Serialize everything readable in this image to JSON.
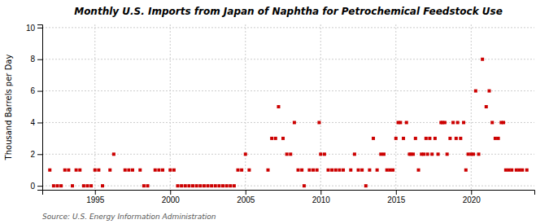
{
  "chart_data": {
    "type": "scatter",
    "title": "Monthly U.S. Imports from Japan of Naphtha for Petrochemical Feedstock Use",
    "ylabel": "Thousand Barrels per Day",
    "annotations": [
      "Source: U.S. Energy Information Administration"
    ],
    "color": "#cc0000",
    "marker": "square",
    "grid": true,
    "xlim": [
      1991.5,
      2024.2
    ],
    "ylim": [
      -0.25,
      10.2
    ],
    "xticks": [
      1995,
      2000,
      2005,
      2010,
      2015,
      2020
    ],
    "yticks": [
      0,
      2,
      4,
      6,
      8,
      10
    ],
    "x": [
      1992.0,
      1992.25,
      1992.5,
      1992.75,
      1993.0,
      1993.25,
      1993.5,
      1993.75,
      1994.0,
      1994.25,
      1994.5,
      1994.75,
      1995.0,
      1995.25,
      1995.5,
      1996.0,
      1996.25,
      1997.0,
      1997.25,
      1997.5,
      1998.0,
      1998.25,
      1998.5,
      1999.0,
      1999.25,
      1999.5,
      2000.0,
      2000.25,
      2000.5,
      2000.75,
      2001.0,
      2001.25,
      2001.5,
      2001.75,
      2002.0,
      2002.25,
      2002.5,
      2002.75,
      2003.0,
      2003.25,
      2003.5,
      2003.75,
      2004.0,
      2004.25,
      2004.5,
      2004.75,
      2005.0,
      2005.25,
      2006.5,
      2006.75,
      2007.0,
      2007.2,
      2007.5,
      2007.75,
      2008.0,
      2008.25,
      2008.5,
      2008.75,
      2008.9,
      2009.25,
      2009.5,
      2009.75,
      2009.9,
      2010.0,
      2010.25,
      2010.5,
      2010.75,
      2011.0,
      2011.25,
      2011.5,
      2012.0,
      2012.25,
      2012.5,
      2012.75,
      2013.0,
      2013.25,
      2013.5,
      2013.75,
      2014.0,
      2014.2,
      2014.4,
      2014.6,
      2014.8,
      2015.0,
      2015.15,
      2015.3,
      2015.5,
      2015.7,
      2015.9,
      2016.0,
      2016.15,
      2016.3,
      2016.5,
      2016.7,
      2016.85,
      2017.0,
      2017.1,
      2017.25,
      2017.4,
      2017.6,
      2017.8,
      2018.0,
      2018.1,
      2018.25,
      2018.4,
      2018.6,
      2018.8,
      2019.0,
      2019.1,
      2019.3,
      2019.5,
      2019.65,
      2019.8,
      2020.0,
      2020.15,
      2020.3,
      2020.5,
      2020.75,
      2021.0,
      2021.2,
      2021.4,
      2021.6,
      2021.8,
      2022.0,
      2022.15,
      2022.3,
      2022.5,
      2022.7,
      2023.0,
      2023.2,
      2023.4,
      2023.7
    ],
    "values": [
      1,
      0,
      0,
      0,
      1,
      1,
      0,
      1,
      1,
      0,
      0,
      0,
      1,
      1,
      0,
      1,
      2,
      1,
      1,
      1,
      1,
      0,
      0,
      1,
      1,
      1,
      1,
      1,
      0,
      0,
      0,
      0,
      0,
      0,
      0,
      0,
      0,
      0,
      0,
      0,
      0,
      0,
      0,
      0,
      1,
      1,
      2,
      1,
      1,
      3,
      3,
      5,
      3,
      2,
      2,
      4,
      1,
      1,
      0,
      1,
      1,
      1,
      4,
      2,
      2,
      1,
      1,
      1,
      1,
      1,
      1,
      2,
      1,
      1,
      0,
      1,
      3,
      1,
      2,
      2,
      1,
      1,
      1,
      3,
      4,
      4,
      3,
      4,
      2,
      2,
      2,
      3,
      1,
      2,
      2,
      3,
      2,
      3,
      2,
      3,
      2,
      4,
      4,
      4,
      2,
      3,
      4,
      3,
      4,
      3,
      4,
      1,
      2,
      2,
      2,
      6,
      2,
      8,
      5,
      6,
      4,
      3,
      3,
      4,
      4,
      1,
      1,
      1,
      1,
      1,
      1,
      1
    ]
  }
}
